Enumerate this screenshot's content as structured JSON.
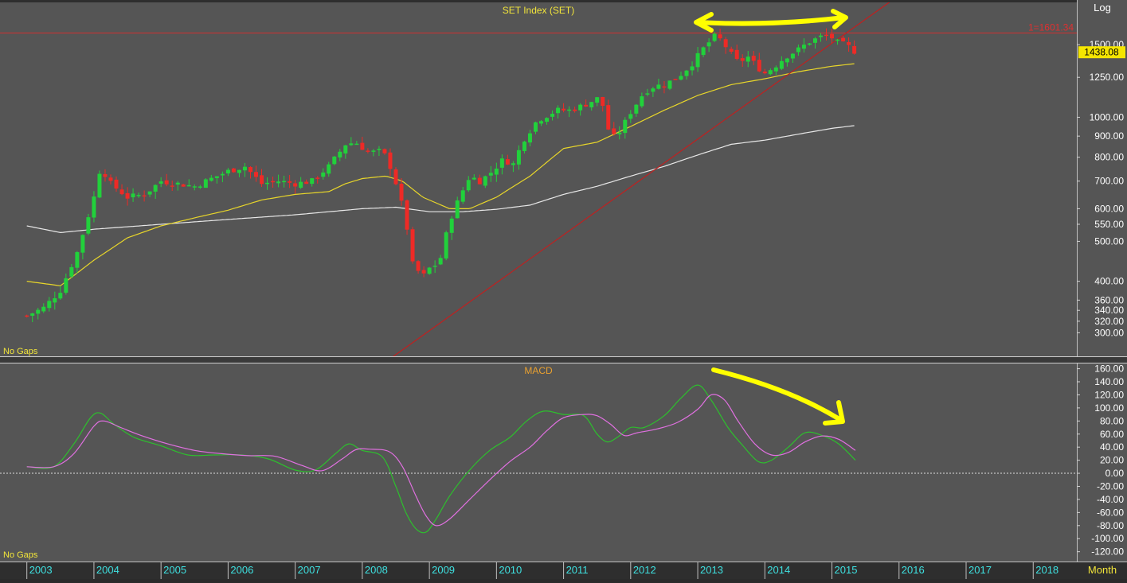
{
  "colors": {
    "panel_bg": "#555555",
    "frame_bg": "#2e2e2e",
    "up_candle": "#21d13b",
    "down_candle": "#ee2a26",
    "ma_short": "#e8d62a",
    "ma_long": "#e8e8e8",
    "trendline": "#c02020",
    "resistance": "#d23030",
    "macd_line": "#2dbf2d",
    "signal_line": "#e070e0",
    "annotation": "#ffff00",
    "title_text": "#f2e53a",
    "axis_text": "#ffffff",
    "year_text": "#3ee0e0"
  },
  "chart_data": [
    {
      "type": "candlestick",
      "title": "SET Index (SET)",
      "scale": "log",
      "scale_label": "Log",
      "footer_label": "No Gaps",
      "last_price": 1438.08,
      "last_price_label": "1438.08",
      "resistance_level": 1601.34,
      "resistance_label": "1=1601.34",
      "ylim": [
        263,
        1900
      ],
      "y_ticks": [
        {
          "value": 1500,
          "label": "1500.00"
        },
        {
          "value": 1250,
          "label": "1250.00"
        },
        {
          "value": 1000,
          "label": "1000.00"
        },
        {
          "value": 900,
          "label": "900.00"
        },
        {
          "value": 800,
          "label": "800.00"
        },
        {
          "value": 700,
          "label": "700.00"
        },
        {
          "value": 600,
          "label": "600.00"
        },
        {
          "value": 550,
          "label": "550.00"
        },
        {
          "value": 500,
          "label": "500.00"
        },
        {
          "value": 400,
          "label": "400.00"
        },
        {
          "value": 360,
          "label": "360.00"
        },
        {
          "value": 340,
          "label": "340.00"
        },
        {
          "value": 320,
          "label": "320.00"
        },
        {
          "value": 300,
          "label": "300.00"
        }
      ],
      "price_anchors": [
        [
          2003.0,
          330
        ],
        [
          2003.25,
          345
        ],
        [
          2003.5,
          380
        ],
        [
          2003.75,
          470
        ],
        [
          2004.0,
          640
        ],
        [
          2004.1,
          760
        ],
        [
          2004.25,
          690
        ],
        [
          2004.5,
          640
        ],
        [
          2004.75,
          650
        ],
        [
          2005.0,
          700
        ],
        [
          2005.25,
          690
        ],
        [
          2005.5,
          680
        ],
        [
          2005.75,
          710
        ],
        [
          2006.0,
          740
        ],
        [
          2006.25,
          760
        ],
        [
          2006.5,
          690
        ],
        [
          2006.75,
          700
        ],
        [
          2007.0,
          690
        ],
        [
          2007.25,
          700
        ],
        [
          2007.5,
          760
        ],
        [
          2007.75,
          860
        ],
        [
          2007.9,
          870
        ],
        [
          2008.1,
          820
        ],
        [
          2008.3,
          830
        ],
        [
          2008.45,
          740
        ],
        [
          2008.55,
          650
        ],
        [
          2008.65,
          560
        ],
        [
          2008.75,
          440
        ],
        [
          2008.9,
          410
        ],
        [
          2009.0,
          430
        ],
        [
          2009.15,
          445
        ],
        [
          2009.3,
          560
        ],
        [
          2009.45,
          640
        ],
        [
          2009.6,
          720
        ],
        [
          2009.75,
          700
        ],
        [
          2009.9,
          730
        ],
        [
          2010.1,
          790
        ],
        [
          2010.25,
          770
        ],
        [
          2010.4,
          880
        ],
        [
          2010.6,
          980
        ],
        [
          2010.75,
          1010
        ],
        [
          2010.9,
          1040
        ],
        [
          2011.1,
          1040
        ],
        [
          2011.3,
          1070
        ],
        [
          2011.5,
          1110
        ],
        [
          2011.6,
          1060
        ],
        [
          2011.7,
          880
        ],
        [
          2011.85,
          930
        ],
        [
          2012.0,
          1030
        ],
        [
          2012.2,
          1150
        ],
        [
          2012.35,
          1190
        ],
        [
          2012.5,
          1200
        ],
        [
          2012.7,
          1250
        ],
        [
          2012.9,
          1340
        ],
        [
          2013.1,
          1480
        ],
        [
          2013.25,
          1570
        ],
        [
          2013.35,
          1540
        ],
        [
          2013.5,
          1420
        ],
        [
          2013.6,
          1360
        ],
        [
          2013.75,
          1400
        ],
        [
          2013.9,
          1320
        ],
        [
          2014.0,
          1280
        ],
        [
          2014.15,
          1330
        ],
        [
          2014.3,
          1400
        ],
        [
          2014.5,
          1460
        ],
        [
          2014.65,
          1520
        ],
        [
          2014.8,
          1560
        ],
        [
          2014.9,
          1580
        ],
        [
          2015.0,
          1560
        ],
        [
          2015.1,
          1510
        ],
        [
          2015.2,
          1500
        ],
        [
          2015.3,
          1465
        ],
        [
          2015.35,
          1438
        ]
      ],
      "ma_short_anchors": [
        [
          2003.0,
          400
        ],
        [
          2003.5,
          390
        ],
        [
          2004.0,
          450
        ],
        [
          2004.5,
          510
        ],
        [
          2005.0,
          545
        ],
        [
          2005.5,
          570
        ],
        [
          2006.0,
          595
        ],
        [
          2006.5,
          630
        ],
        [
          2007.0,
          650
        ],
        [
          2007.5,
          660
        ],
        [
          2007.75,
          690
        ],
        [
          2008.0,
          710
        ],
        [
          2008.35,
          720
        ],
        [
          2008.6,
          700
        ],
        [
          2008.9,
          640
        ],
        [
          2009.3,
          600
        ],
        [
          2009.6,
          600
        ],
        [
          2010.0,
          640
        ],
        [
          2010.5,
          720
        ],
        [
          2011.0,
          840
        ],
        [
          2011.5,
          870
        ],
        [
          2012.0,
          950
        ],
        [
          2012.5,
          1040
        ],
        [
          2013.0,
          1130
        ],
        [
          2013.5,
          1200
        ],
        [
          2014.0,
          1240
        ],
        [
          2014.5,
          1290
        ],
        [
          2015.0,
          1330
        ],
        [
          2015.35,
          1350
        ]
      ],
      "ma_long_anchors": [
        [
          2003.0,
          545
        ],
        [
          2003.5,
          525
        ],
        [
          2004.0,
          535
        ],
        [
          2005.0,
          550
        ],
        [
          2006.0,
          565
        ],
        [
          2007.0,
          580
        ],
        [
          2008.0,
          600
        ],
        [
          2008.5,
          605
        ],
        [
          2009.0,
          590
        ],
        [
          2009.5,
          590
        ],
        [
          2010.0,
          598
        ],
        [
          2010.5,
          612
        ],
        [
          2011.0,
          650
        ],
        [
          2011.5,
          680
        ],
        [
          2012.0,
          720
        ],
        [
          2012.5,
          760
        ],
        [
          2013.0,
          810
        ],
        [
          2013.5,
          860
        ],
        [
          2014.0,
          880
        ],
        [
          2014.5,
          910
        ],
        [
          2015.0,
          940
        ],
        [
          2015.35,
          955
        ]
      ],
      "trendline": {
        "from": [
          2008.45,
          262
        ],
        "to": [
          2015.95,
          1950
        ]
      }
    },
    {
      "type": "line",
      "title": "MACD",
      "footer_label": "No Gaps",
      "ylim": [
        -135,
        168
      ],
      "y_ticks": [
        {
          "value": 160,
          "label": "160.00"
        },
        {
          "value": 140,
          "label": "140.00"
        },
        {
          "value": 120,
          "label": "120.00"
        },
        {
          "value": 100,
          "label": "100.00"
        },
        {
          "value": 80,
          "label": "80.00"
        },
        {
          "value": 60,
          "label": "60.00"
        },
        {
          "value": 40,
          "label": "40.00"
        },
        {
          "value": 20,
          "label": "20.00"
        },
        {
          "value": 0,
          "label": "0.00"
        },
        {
          "value": -20,
          "label": "-20.00"
        },
        {
          "value": -40,
          "label": "-40.00"
        },
        {
          "value": -60,
          "label": "-60.00"
        },
        {
          "value": -80,
          "label": "-80.00"
        },
        {
          "value": -100,
          "label": "-100.00"
        },
        {
          "value": -120,
          "label": "-120.00"
        }
      ],
      "series": [
        {
          "key": "macd",
          "x": [
            2003.0,
            2003.4,
            2003.7,
            2003.95,
            2004.1,
            2004.3,
            2004.6,
            2005.0,
            2005.4,
            2005.8,
            2006.2,
            2006.6,
            2007.0,
            2007.3,
            2007.6,
            2007.8,
            2008.0,
            2008.3,
            2008.5,
            2008.65,
            2008.8,
            2008.95,
            2009.1,
            2009.3,
            2009.6,
            2009.9,
            2010.2,
            2010.45,
            2010.7,
            2011.0,
            2011.3,
            2011.5,
            2011.65,
            2011.8,
            2012.0,
            2012.2,
            2012.5,
            2012.75,
            2013.0,
            2013.2,
            2013.45,
            2013.65,
            2013.9,
            2014.1,
            2014.35,
            2014.6,
            2014.85,
            2015.1,
            2015.35
          ],
          "y": [
            10,
            10,
            45,
            85,
            92,
            75,
            55,
            42,
            28,
            28,
            28,
            22,
            5,
            5,
            30,
            45,
            35,
            25,
            -20,
            -60,
            -85,
            -90,
            -70,
            -35,
            5,
            35,
            55,
            80,
            95,
            90,
            88,
            60,
            48,
            55,
            70,
            70,
            88,
            115,
            135,
            112,
            70,
            45,
            18,
            20,
            40,
            62,
            58,
            45,
            20
          ]
        },
        {
          "key": "signal",
          "x": [
            2003.0,
            2003.4,
            2003.7,
            2004.0,
            2004.15,
            2004.4,
            2004.7,
            2005.1,
            2005.5,
            2005.9,
            2006.3,
            2006.7,
            2007.1,
            2007.4,
            2007.7,
            2007.9,
            2008.1,
            2008.4,
            2008.6,
            2008.8,
            2008.95,
            2009.1,
            2009.3,
            2009.6,
            2009.9,
            2010.2,
            2010.5,
            2010.75,
            2011.0,
            2011.3,
            2011.5,
            2011.7,
            2011.9,
            2012.1,
            2012.4,
            2012.7,
            2013.0,
            2013.2,
            2013.4,
            2013.6,
            2013.85,
            2014.1,
            2014.35,
            2014.6,
            2014.85,
            2015.1,
            2015.35
          ],
          "y": [
            10,
            10,
            30,
            72,
            80,
            70,
            58,
            45,
            35,
            30,
            27,
            26,
            12,
            4,
            22,
            36,
            37,
            33,
            10,
            -35,
            -65,
            -80,
            -70,
            -40,
            -10,
            18,
            40,
            65,
            85,
            90,
            88,
            75,
            58,
            62,
            68,
            78,
            98,
            120,
            112,
            80,
            45,
            28,
            32,
            48,
            57,
            52,
            35
          ]
        }
      ]
    }
  ],
  "time_axis": {
    "years": [
      "2003",
      "2004",
      "2005",
      "2006",
      "2007",
      "2008",
      "2009",
      "2010",
      "2011",
      "2012",
      "2013",
      "2014",
      "2015",
      "2016",
      "2017",
      "2018"
    ],
    "period_label": "Month"
  }
}
